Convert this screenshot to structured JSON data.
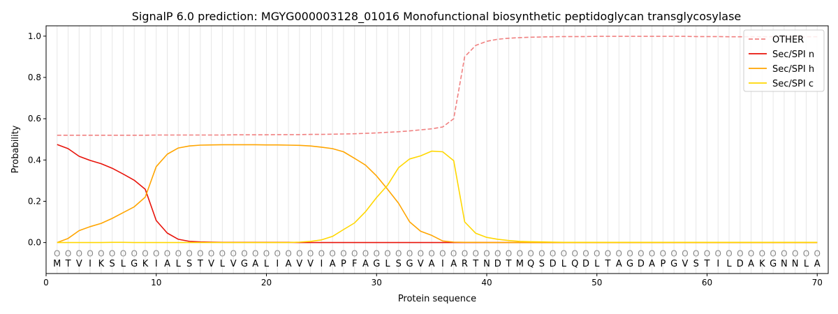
{
  "chart_data": {
    "type": "line",
    "title": "SignalP 6.0 prediction: MGYG000003128_01016 Monofunctional biosynthetic peptidoglycan transglycosylase",
    "xlabel": "Protein sequence",
    "ylabel": "Probability",
    "xlim": [
      0,
      71
    ],
    "ylim": [
      -0.15,
      1.05
    ],
    "x_ticks": [
      0,
      10,
      20,
      30,
      40,
      50,
      60,
      70
    ],
    "y_ticks": [
      0.0,
      0.2,
      0.4,
      0.6,
      0.8,
      1.0
    ],
    "x_tick_labels": [
      "0",
      "10",
      "20",
      "30",
      "40",
      "50",
      "60",
      "70"
    ],
    "y_tick_labels": [
      "0.0",
      "0.2",
      "0.4",
      "0.6",
      "0.8",
      "1.0"
    ],
    "grid": "vertical lines at each residue",
    "legend_position": "top-right",
    "sequence": [
      "M",
      "T",
      "V",
      "I",
      "K",
      "S",
      "L",
      "G",
      "K",
      "I",
      "A",
      "L",
      "S",
      "T",
      "V",
      "L",
      "V",
      "G",
      "A",
      "L",
      "I",
      "A",
      "V",
      "V",
      "I",
      "A",
      "P",
      "F",
      "A",
      "G",
      "L",
      "S",
      "G",
      "V",
      "A",
      "I",
      "A",
      "R",
      "T",
      "N",
      "D",
      "T",
      "M",
      "Q",
      "S",
      "D",
      "L",
      "Q",
      "D",
      "L",
      "T",
      "A",
      "G",
      "D",
      "A",
      "P",
      "G",
      "V",
      "S",
      "T",
      "I",
      "L",
      "D",
      "A",
      "K",
      "G",
      "N",
      "N",
      "L",
      "A"
    ],
    "region_label": "O",
    "series": [
      {
        "name": "OTHER",
        "color": "#f08080",
        "style": "dashed",
        "values": [
          0.52,
          0.52,
          0.52,
          0.52,
          0.52,
          0.52,
          0.52,
          0.52,
          0.52,
          0.521,
          0.521,
          0.521,
          0.521,
          0.521,
          0.521,
          0.521,
          0.522,
          0.522,
          0.522,
          0.522,
          0.523,
          0.523,
          0.523,
          0.524,
          0.524,
          0.525,
          0.526,
          0.527,
          0.529,
          0.531,
          0.534,
          0.537,
          0.541,
          0.546,
          0.551,
          0.56,
          0.6,
          0.9,
          0.955,
          0.975,
          0.985,
          0.99,
          0.993,
          0.995,
          0.996,
          0.997,
          0.998,
          0.998,
          0.998,
          0.999,
          0.999,
          0.999,
          0.999,
          0.999,
          0.999,
          0.999,
          0.999,
          0.999,
          0.998,
          0.998,
          0.998,
          0.997,
          0.997,
          0.997,
          0.997,
          0.997,
          0.997,
          0.997,
          0.997,
          0.997
        ]
      },
      {
        "name": "Sec/SPI n",
        "color": "#e8130a",
        "style": "solid",
        "values": [
          0.475,
          0.455,
          0.418,
          0.398,
          0.382,
          0.36,
          0.332,
          0.302,
          0.258,
          0.107,
          0.046,
          0.016,
          0.006,
          0.003,
          0.002,
          0.001,
          0.001,
          0.001,
          0.001,
          0.001,
          0.001,
          0.001,
          0.0,
          0.0,
          0.0,
          0.0,
          0.0,
          0.0,
          0.0,
          0.0,
          0.0,
          0.0,
          0.0,
          0.0,
          0.0,
          0.0,
          0.0,
          0.0,
          0.0,
          0.0,
          0.0,
          0.0,
          0.0,
          0.0,
          0.0,
          0.0,
          0.0,
          0.0,
          0.0,
          0.0,
          0.0,
          0.0,
          0.0,
          0.0,
          0.0,
          0.0,
          0.0,
          0.0,
          0.0,
          0.0,
          0.0,
          0.0,
          0.0,
          0.0,
          0.0,
          0.0,
          0.0,
          0.0,
          0.0,
          0.0
        ]
      },
      {
        "name": "Sec/SPI h",
        "color": "#ffa500",
        "style": "solid",
        "values": [
          0.0,
          0.02,
          0.058,
          0.077,
          0.093,
          0.117,
          0.145,
          0.173,
          0.22,
          0.368,
          0.428,
          0.458,
          0.468,
          0.472,
          0.473,
          0.474,
          0.474,
          0.474,
          0.474,
          0.473,
          0.473,
          0.472,
          0.471,
          0.468,
          0.462,
          0.455,
          0.44,
          0.408,
          0.375,
          0.323,
          0.258,
          0.19,
          0.1,
          0.055,
          0.035,
          0.008,
          0.002,
          0.001,
          0.001,
          0.0,
          0.0,
          0.0,
          0.0,
          0.0,
          0.0,
          0.0,
          0.0,
          0.0,
          0.0,
          0.0,
          0.0,
          0.0,
          0.0,
          0.0,
          0.0,
          0.0,
          0.0,
          0.0,
          0.0,
          0.0,
          0.0,
          0.0,
          0.0,
          0.0,
          0.0,
          0.0,
          0.0,
          0.0,
          0.0,
          0.0
        ]
      },
      {
        "name": "Sec/SPI c",
        "color": "#ffd700",
        "style": "solid",
        "values": [
          0.0,
          0.0,
          0.0,
          0.0,
          0.0,
          0.001,
          0.001,
          0.0,
          0.0,
          0.0,
          0.0,
          0.0,
          0.0,
          0.0,
          0.0,
          0.0,
          0.0,
          0.0,
          0.0,
          0.0,
          0.0,
          0.0,
          0.002,
          0.006,
          0.013,
          0.03,
          0.063,
          0.095,
          0.15,
          0.218,
          0.278,
          0.363,
          0.405,
          0.42,
          0.443,
          0.44,
          0.397,
          0.1,
          0.045,
          0.025,
          0.016,
          0.01,
          0.006,
          0.004,
          0.003,
          0.002,
          0.001,
          0.001,
          0.001,
          0.001,
          0.001,
          0.001,
          0.001,
          0.001,
          0.001,
          0.001,
          0.001,
          0.001,
          0.001,
          0.001,
          0.001,
          0.001,
          0.001,
          0.001,
          0.001,
          0.001,
          0.001,
          0.001,
          0.001,
          0.001
        ]
      }
    ]
  }
}
